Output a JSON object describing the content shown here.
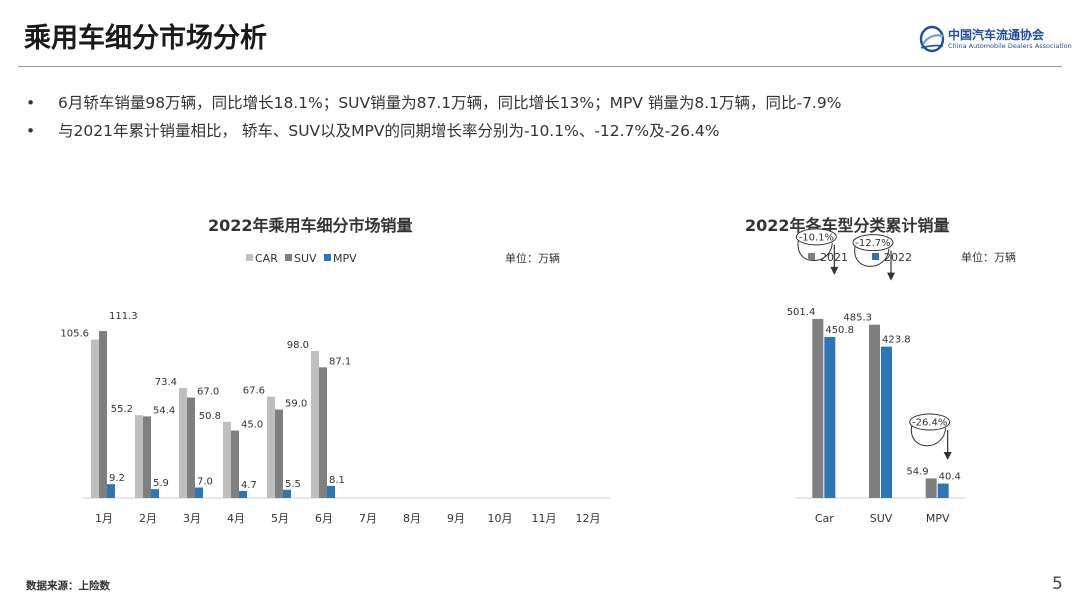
{
  "header": {
    "title": "乘用车细分市场分析",
    "logo_name": "中国汽车流通协会",
    "logo_sub": "China Automobile Dealers Association",
    "logo_icon": "cada-logo-icon"
  },
  "bullets": [
    "6月轿车销量98万辆，同比增长18.1%；SUV销量为87.1万辆，同比增长13%；MPV 销量为8.1万辆，同比-7.9%",
    "与2021年累计销量相比， 轿车、SUV以及MPV的同期增长率分别为-10.1%、-12.7%及-26.4%"
  ],
  "footer": {
    "source": "数据来源：上险数",
    "page": "5"
  },
  "chart_data": [
    {
      "type": "bar",
      "title": "2022年乘用车细分市场销量",
      "unit_label": "单位：万辆",
      "legend_position": "top-right",
      "categories": [
        "1月",
        "2月",
        "3月",
        "4月",
        "5月",
        "6月",
        "7月",
        "8月",
        "9月",
        "10月",
        "11月",
        "12月"
      ],
      "series": [
        {
          "name": "CAR",
          "color": "#bfbfbf",
          "values": [
            105.6,
            55.2,
            73.4,
            50.8,
            67.6,
            98.0,
            null,
            null,
            null,
            null,
            null,
            null
          ]
        },
        {
          "name": "SUV",
          "color": "#7f7f7f",
          "values": [
            111.3,
            54.4,
            67.0,
            45.0,
            59.0,
            87.1,
            null,
            null,
            null,
            null,
            null,
            null
          ]
        },
        {
          "name": "MPV",
          "color": "#2e75b6",
          "values": [
            9.2,
            5.9,
            7.0,
            4.7,
            5.5,
            8.1,
            null,
            null,
            null,
            null,
            null,
            null
          ]
        }
      ],
      "ylim": [
        0,
        120
      ],
      "grid": false
    },
    {
      "type": "bar",
      "title": "2022年各车型分类累计销量",
      "unit_label": "单位：万辆",
      "legend_position": "top",
      "categories": [
        "Car",
        "SUV",
        "MPV"
      ],
      "series": [
        {
          "name": "2021",
          "color": "#7f7f7f",
          "values": [
            501.4,
            485.3,
            54.9
          ]
        },
        {
          "name": "2022",
          "color": "#2e75b6",
          "values": [
            450.8,
            423.8,
            40.4
          ]
        }
      ],
      "annotations": [
        "-10.1%",
        "-12.7%",
        "-26.4%"
      ],
      "ylim": [
        0,
        700
      ],
      "grid": false
    }
  ]
}
